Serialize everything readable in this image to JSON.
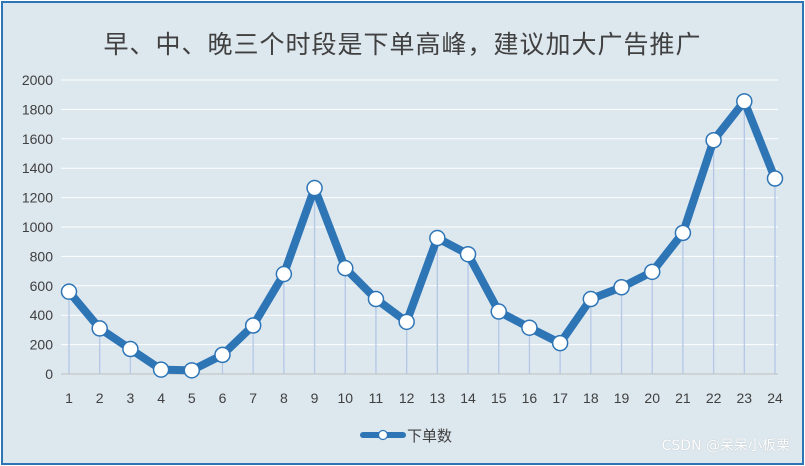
{
  "chart_data": {
    "type": "line",
    "title": "早、中、晚三个时段是下单高峰，建议加大广告推广",
    "categories": [
      "1",
      "2",
      "3",
      "4",
      "5",
      "6",
      "7",
      "8",
      "9",
      "10",
      "11",
      "12",
      "13",
      "14",
      "15",
      "16",
      "17",
      "18",
      "19",
      "20",
      "21",
      "22",
      "23",
      "24"
    ],
    "series": [
      {
        "name": "下单数",
        "values": [
          560,
          310,
          170,
          30,
          25,
          130,
          330,
          680,
          1265,
          720,
          510,
          355,
          925,
          815,
          425,
          315,
          210,
          510,
          590,
          695,
          960,
          1590,
          1855,
          1330
        ]
      }
    ],
    "ylim": [
      0,
      2000
    ],
    "yticks": [
      0,
      200,
      400,
      600,
      800,
      1000,
      1200,
      1400,
      1600,
      1800,
      2000
    ],
    "grid": true,
    "drop_lines": true,
    "legend": "bottom",
    "colors": {
      "line": "#2e75b6",
      "marker_fill": "#ffffff",
      "grid": "#ffffff",
      "drop": "#b4c7e7",
      "background": "#dde7ee"
    }
  },
  "watermark": "CSDN @呆呆小板栗"
}
